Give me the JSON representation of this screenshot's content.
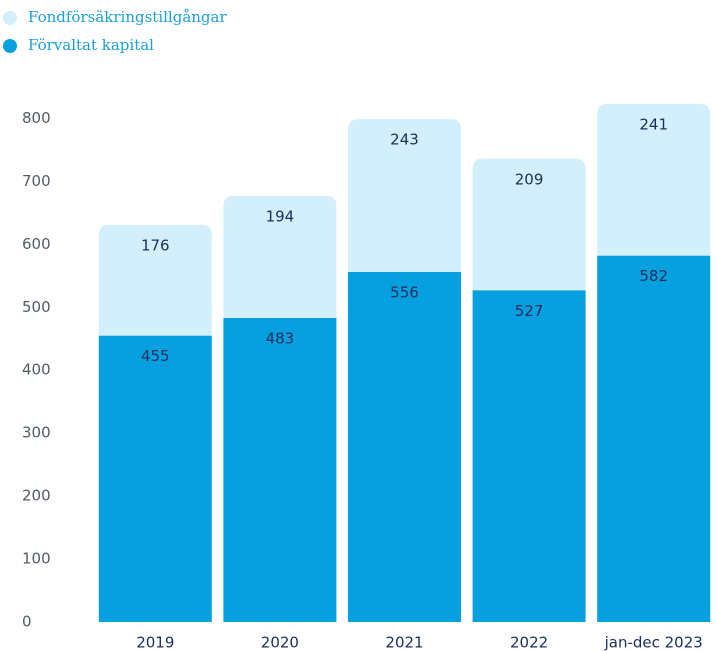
{
  "chart_data": {
    "type": "stacked_bar",
    "categories": [
      "2019",
      "2020",
      "2021",
      "2022",
      "jan-dec 2023"
    ],
    "series": [
      {
        "name": "Förvaltat kapital",
        "color": "#069fdf",
        "values": [
          455,
          483,
          556,
          527,
          582
        ]
      },
      {
        "name": "Fondförsäkringstillgångar",
        "color": "#d3effb",
        "values": [
          176,
          194,
          243,
          209,
          241
        ]
      }
    ],
    "ylim": [
      0,
      850
    ],
    "yticks": [
      0,
      100,
      200,
      300,
      400,
      500,
      600,
      700,
      800
    ],
    "grid": false,
    "legend": "top-left"
  }
}
